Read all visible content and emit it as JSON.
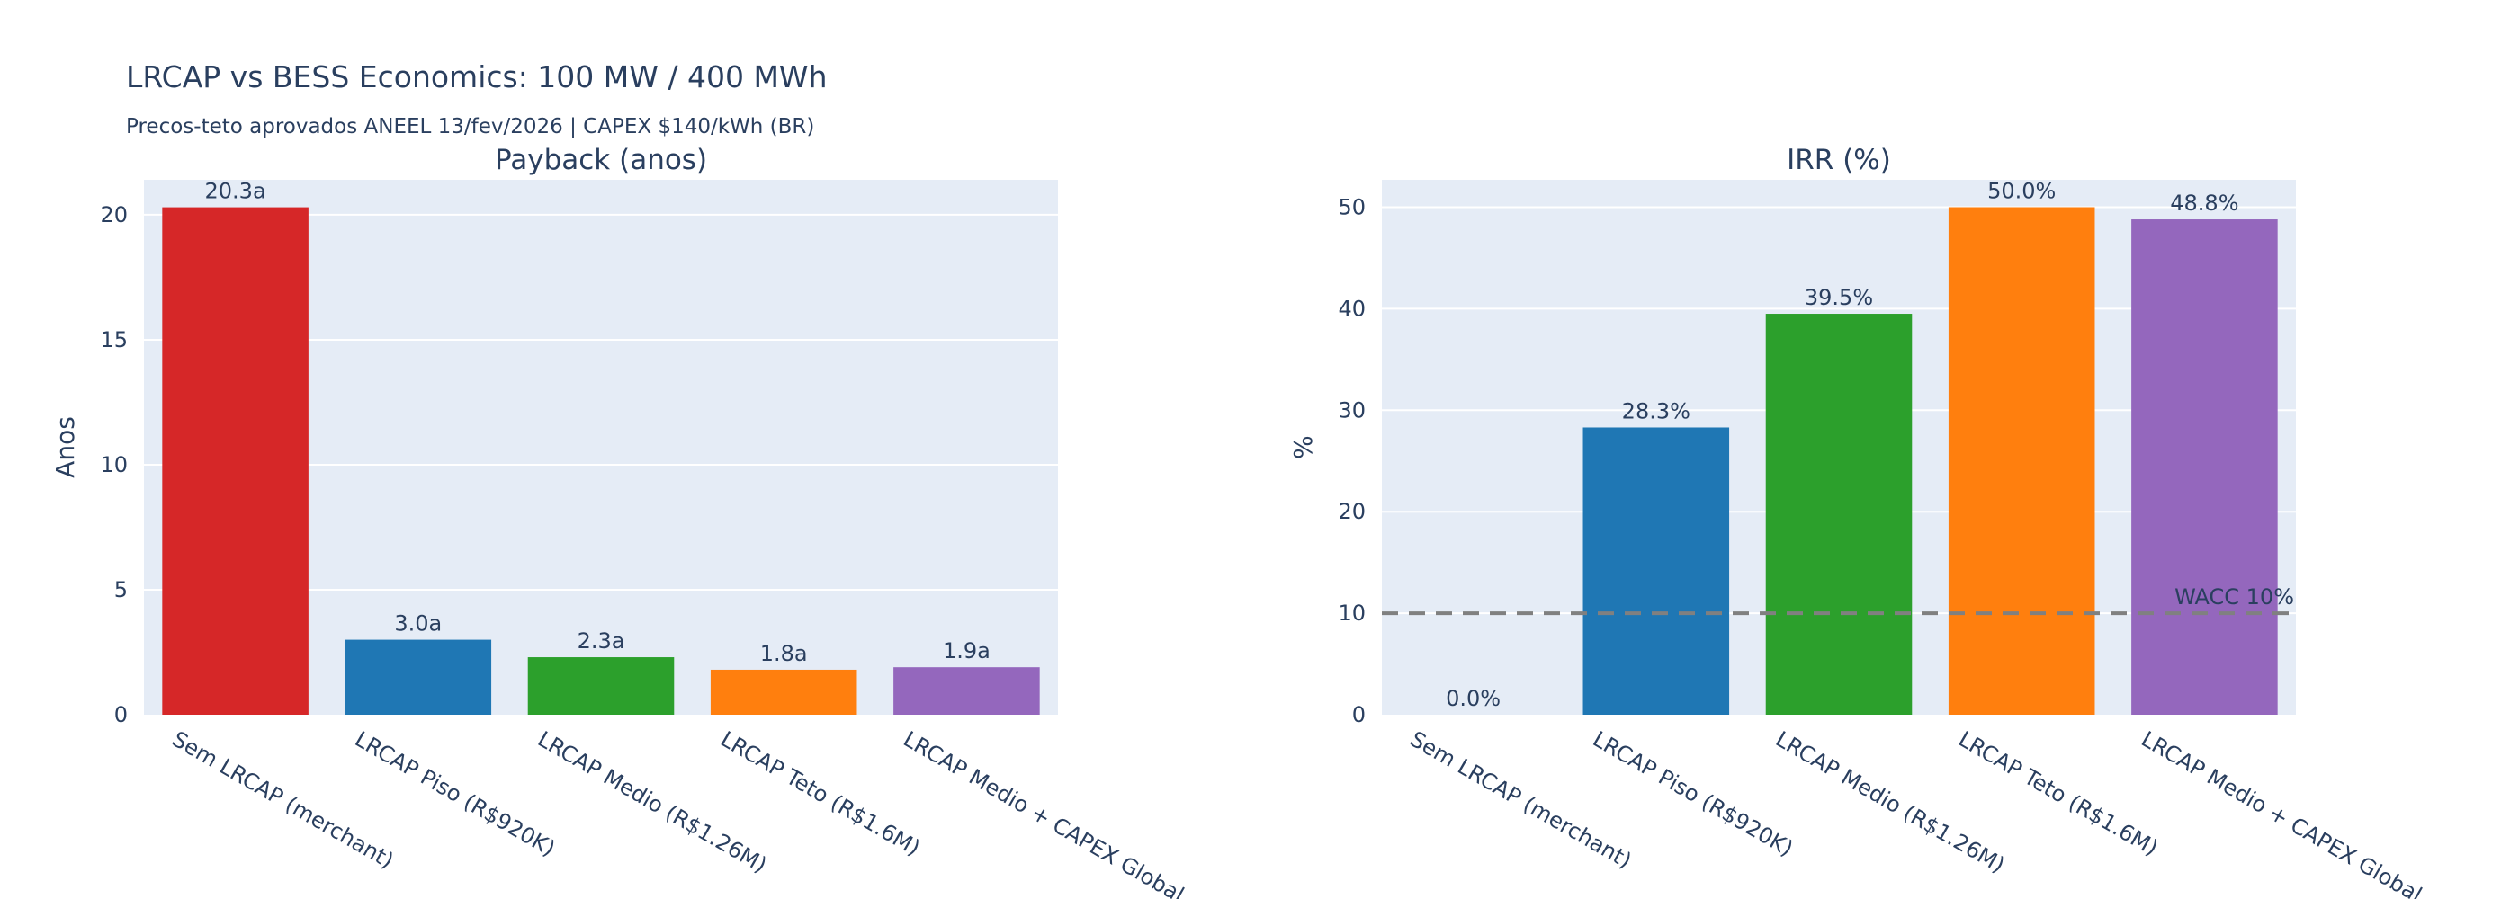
{
  "header": {
    "title": "LRCAP vs BESS Economics: 100 MW / 400 MWh",
    "subtitle": "Precos-teto aprovados ANEEL 13/fev/2026 | CAPEX $140/kWh (BR)"
  },
  "chart_data": [
    {
      "type": "bar",
      "title": "Payback (anos)",
      "xlabel": "",
      "ylabel": "Anos",
      "categories": [
        "Sem LRCAP (merchant)",
        "LRCAP Piso (R$920K)",
        "LRCAP Medio (R$1.26M)",
        "LRCAP Teto (R$1.6M)",
        "LRCAP Medio + CAPEX Global"
      ],
      "values": [
        20.3,
        3.0,
        2.3,
        1.8,
        1.9
      ],
      "labels": [
        "20.3a",
        "3.0a",
        "2.3a",
        "1.8a",
        "1.9a"
      ],
      "colors": [
        "#d62728",
        "#1f77b4",
        "#2ca02c",
        "#ff7f0e",
        "#9467bd"
      ],
      "ylim": [
        0,
        21.4
      ],
      "yticks": [
        0,
        5,
        10,
        15,
        20
      ],
      "grid": true
    },
    {
      "type": "bar",
      "title": "IRR (%)",
      "xlabel": "",
      "ylabel": "%",
      "categories": [
        "Sem LRCAP (merchant)",
        "LRCAP Piso (R$920K)",
        "LRCAP Medio (R$1.26M)",
        "LRCAP Teto (R$1.6M)",
        "LRCAP Medio + CAPEX Global"
      ],
      "values": [
        0.0,
        28.3,
        39.5,
        50.0,
        48.8
      ],
      "labels": [
        "0.0%",
        "28.3%",
        "39.5%",
        "50.0%",
        "48.8%"
      ],
      "colors": [
        "#d62728",
        "#1f77b4",
        "#2ca02c",
        "#ff7f0e",
        "#9467bd"
      ],
      "ylim": [
        0,
        52.7
      ],
      "yticks": [
        0,
        10,
        20,
        30,
        40,
        50
      ],
      "grid": true,
      "reference_line": {
        "value": 10,
        "label": "WACC 10%",
        "color": "#808080"
      }
    }
  ]
}
